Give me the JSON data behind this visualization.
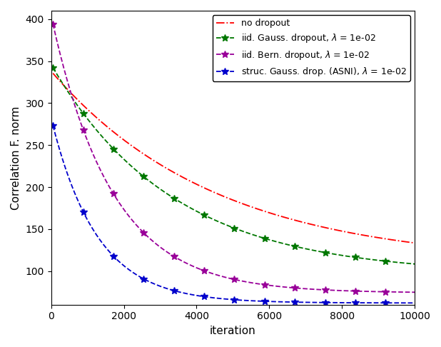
{
  "title": "",
  "xlabel": "iteration",
  "ylabel": "Correlation F. norm",
  "xlim": [
    0,
    10000
  ],
  "ylim": [
    60,
    410
  ],
  "yticks": [
    100,
    150,
    200,
    250,
    300,
    350,
    400
  ],
  "xticks": [
    0,
    2000,
    4000,
    6000,
    8000,
    10000
  ],
  "curves": [
    {
      "key": "no_dropout",
      "label": "no dropout",
      "color": "#ff0000",
      "linestyle": "-.",
      "marker": null,
      "a": 230,
      "b": 0.00022,
      "c": 108,
      "x_start": 50
    },
    {
      "key": "iid_gauss",
      "label": "iid. Gauss. dropout, $\\lambda$ = 1e-02",
      "color": "#007700",
      "linestyle": "--",
      "marker": "*",
      "a": 250,
      "b": 0.0003,
      "c": 96,
      "x_start": 50
    },
    {
      "key": "iid_bern",
      "label": "iid. Bern. dropout, $\\lambda$ = 1e-02",
      "color": "#990099",
      "linestyle": "--",
      "marker": "*",
      "a": 330,
      "b": 0.0006,
      "c": 74,
      "x_start": 50
    },
    {
      "key": "struc_gauss",
      "label": "struc. Gauss. drop. (ASNI), $\\lambda$ = 1e-02",
      "color": "#0000cc",
      "linestyle": "--",
      "marker": "*",
      "a": 220,
      "b": 0.0008,
      "c": 62,
      "x_start": 50
    }
  ],
  "n_points": 300,
  "marker_every": 25,
  "markersize": 7,
  "linewidth": 1.3,
  "figsize": [
    6.18,
    4.86
  ],
  "dpi": 100,
  "legend_fontsize": 9,
  "tick_labelsize": 10,
  "axis_labelsize": 11
}
